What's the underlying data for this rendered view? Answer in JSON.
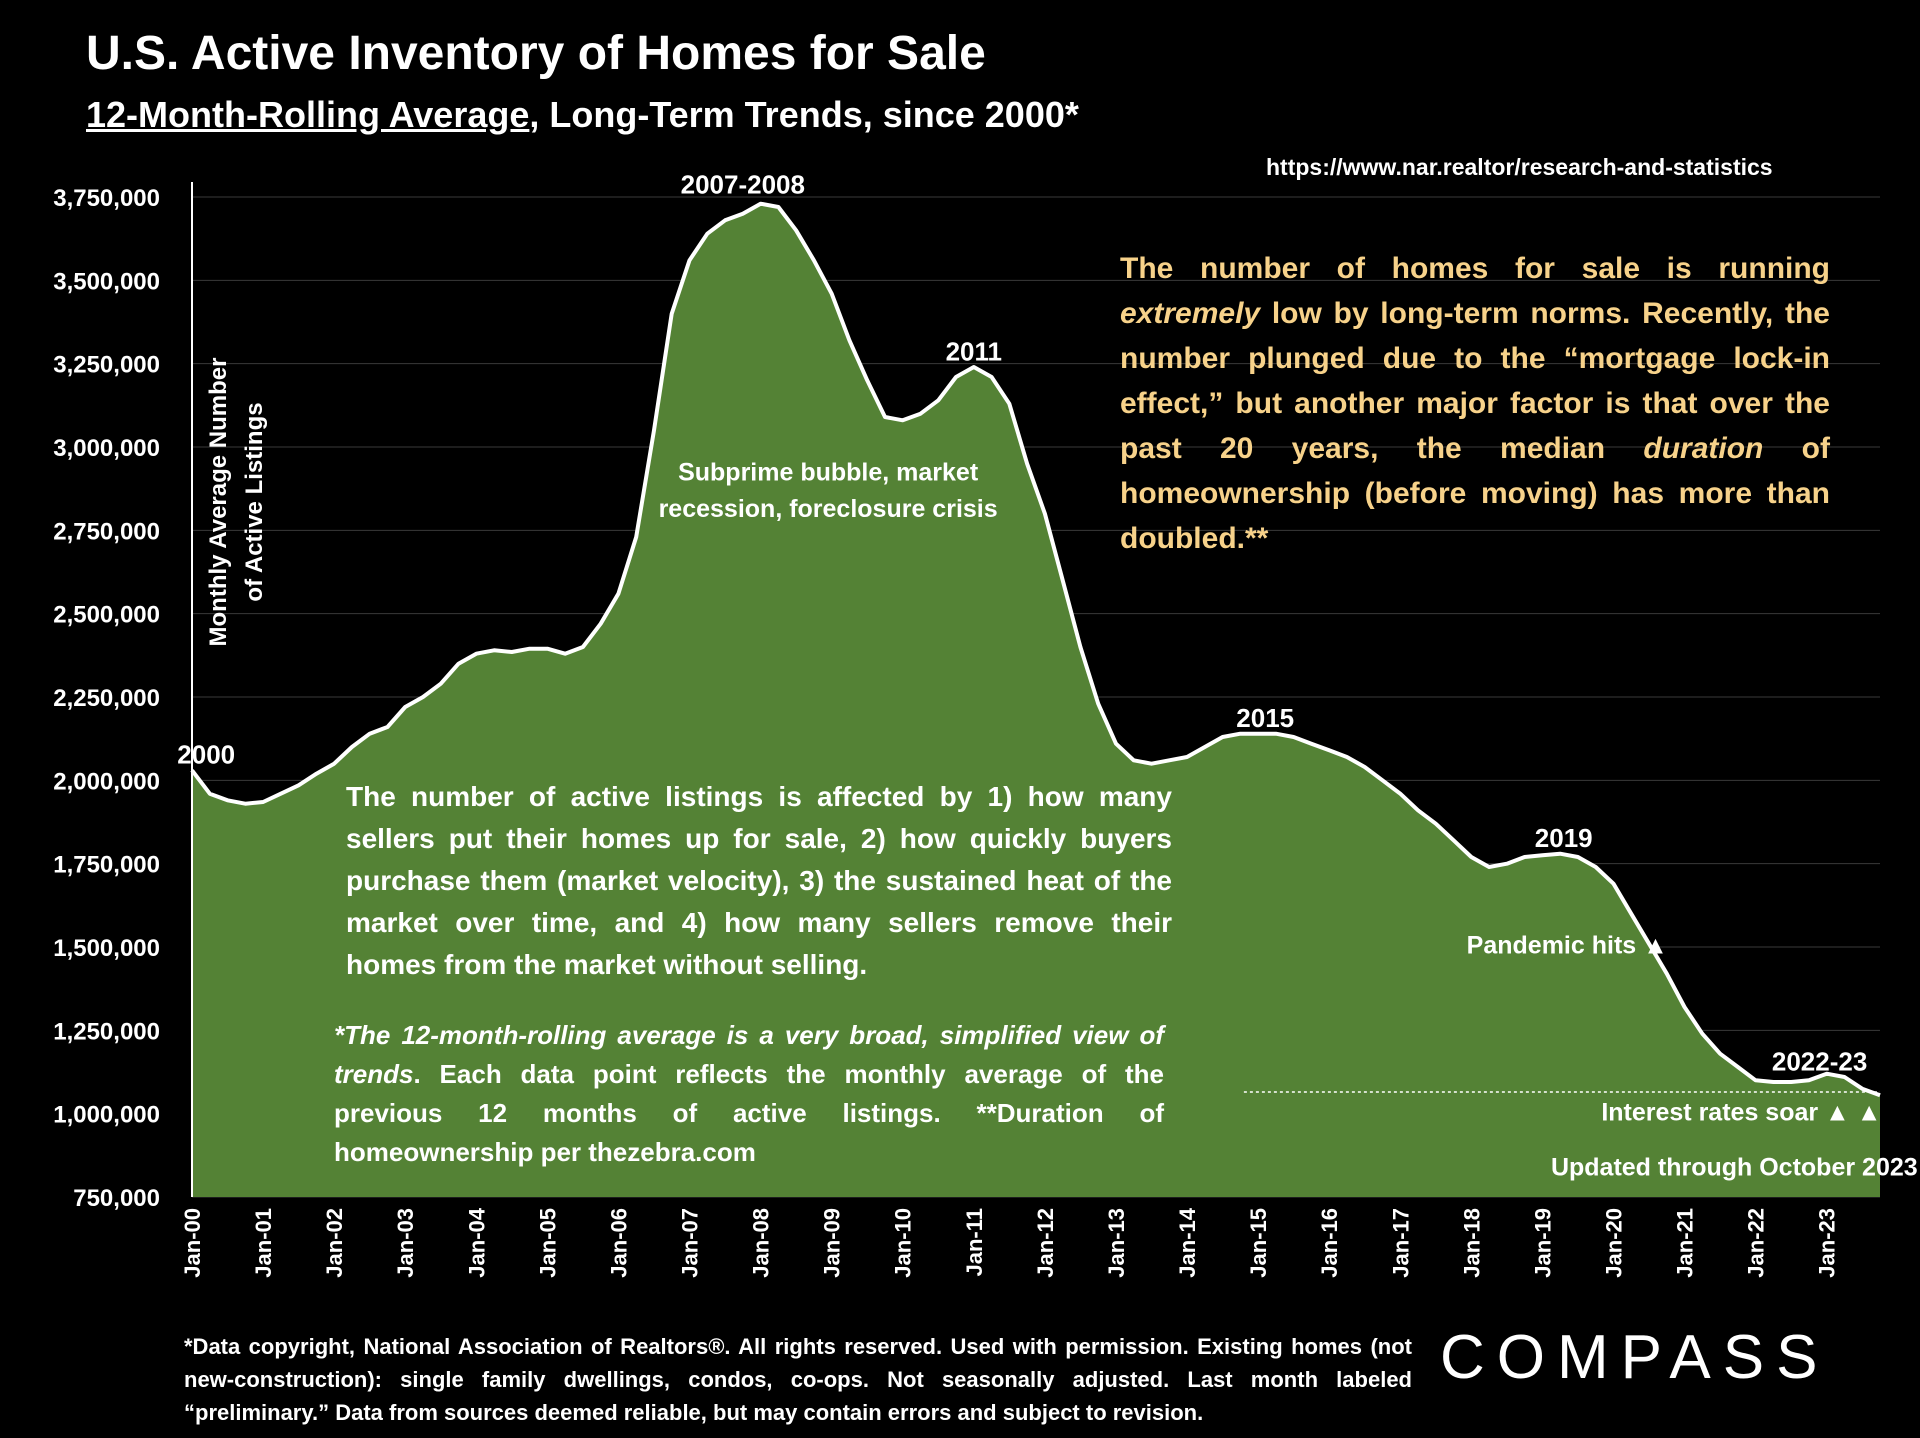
{
  "title": "U.S. Active Inventory of Homes for Sale",
  "subtitle_underlined": "12-Month-Rolling Average",
  "subtitle_rest": ", Long-Term Trends, since 2000*",
  "source_url": "https://www.nar.realtor/research-and-statistics",
  "colors": {
    "background": "#000000",
    "area_fill": "#548235",
    "line": "#ffffff",
    "highlight_text": "#f7d28a"
  },
  "notes": {
    "headline_p1": "The number of homes for sale is running ",
    "headline_em1": "extremely",
    "headline_p2": " low by long-term norms. Recently, the number plunged due to the “mortgage lock-in effect,” but another major factor is that over the past 20 years, the median ",
    "headline_em2": "duration",
    "headline_p3": " of homeownership (before moving) has more than doubled.**",
    "factors": "The number of active listings is affected by 1) how many sellers put their homes up for sale, 2) how quickly buyers purchase them (market velocity), 3) the sustained heat of the market over time, and 4) how many sellers remove their homes from the market without selling.",
    "rolling_em": "*The 12-month-rolling average is a very broad, simplified view of trends",
    "rolling_rest": ". Each data point reflects the monthly average of the previous 12 months of active listings. **Duration of homeownership per thezebra.com"
  },
  "footer": "*Data copyright, National Association of Realtors®. All rights reserved. Used with permission. Existing homes (not new-construction): single family dwellings, condos, co-ops. Not seasonally adjusted. Last month labeled “preliminary.” Data from sources deemed reliable, but may contain errors and subject to revision.",
  "logo": "COMPASS",
  "chart_data": {
    "type": "area",
    "title": "U.S. Active Inventory of Homes for Sale",
    "ylabel": "Monthly Average Number of Active  Listings",
    "ylabel_line1": "Monthly Average Number",
    "ylabel_line2": "of Active  Listings",
    "ylim": [
      750000,
      3750000
    ],
    "yticks": [
      750000,
      1000000,
      1250000,
      1500000,
      1750000,
      2000000,
      2250000,
      2500000,
      2750000,
      3000000,
      3250000,
      3500000,
      3750000
    ],
    "ytick_labels": [
      "750,000",
      "1,000,000",
      "1,250,000",
      "1,500,000",
      "1,750,000",
      "2,000,000",
      "2,250,000",
      "2,500,000",
      "2,750,000",
      "3,000,000",
      "3,250,000",
      "3,500,000",
      "3,750,000"
    ],
    "xlim": [
      2000.0,
      2023.75
    ],
    "xticks": [
      "Jan-00",
      "Jan-01",
      "Jan-02",
      "Jan-03",
      "Jan-04",
      "Jan-05",
      "Jan-06",
      "Jan-07",
      "Jan-08",
      "Jan-09",
      "Jan-10",
      "Jan-11",
      "Jan-12",
      "Jan-13",
      "Jan-14",
      "Jan-15",
      "Jan-16",
      "Jan-17",
      "Jan-18",
      "Jan-19",
      "Jan-20",
      "Jan-21",
      "Jan-22",
      "Jan-23"
    ],
    "grid": true,
    "series": [
      {
        "name": "Active listings (12-month rolling average)",
        "points": [
          [
            2000.0,
            2030000
          ],
          [
            2000.25,
            1960000
          ],
          [
            2000.5,
            1940000
          ],
          [
            2000.75,
            1930000
          ],
          [
            2001.0,
            1935000
          ],
          [
            2001.25,
            1960000
          ],
          [
            2001.5,
            1985000
          ],
          [
            2001.75,
            2020000
          ],
          [
            2002.0,
            2050000
          ],
          [
            2002.25,
            2100000
          ],
          [
            2002.5,
            2140000
          ],
          [
            2002.75,
            2160000
          ],
          [
            2003.0,
            2220000
          ],
          [
            2003.25,
            2250000
          ],
          [
            2003.5,
            2290000
          ],
          [
            2003.75,
            2350000
          ],
          [
            2004.0,
            2380000
          ],
          [
            2004.25,
            2390000
          ],
          [
            2004.5,
            2385000
          ],
          [
            2004.75,
            2395000
          ],
          [
            2005.0,
            2395000
          ],
          [
            2005.25,
            2380000
          ],
          [
            2005.5,
            2400000
          ],
          [
            2005.75,
            2470000
          ],
          [
            2006.0,
            2560000
          ],
          [
            2006.25,
            2730000
          ],
          [
            2006.5,
            3050000
          ],
          [
            2006.75,
            3400000
          ],
          [
            2007.0,
            3560000
          ],
          [
            2007.25,
            3640000
          ],
          [
            2007.5,
            3680000
          ],
          [
            2007.75,
            3700000
          ],
          [
            2008.0,
            3730000
          ],
          [
            2008.25,
            3720000
          ],
          [
            2008.5,
            3650000
          ],
          [
            2008.75,
            3560000
          ],
          [
            2009.0,
            3460000
          ],
          [
            2009.25,
            3320000
          ],
          [
            2009.5,
            3200000
          ],
          [
            2009.75,
            3090000
          ],
          [
            2010.0,
            3080000
          ],
          [
            2010.25,
            3100000
          ],
          [
            2010.5,
            3140000
          ],
          [
            2010.75,
            3210000
          ],
          [
            2011.0,
            3240000
          ],
          [
            2011.25,
            3210000
          ],
          [
            2011.5,
            3130000
          ],
          [
            2011.75,
            2950000
          ],
          [
            2012.0,
            2800000
          ],
          [
            2012.25,
            2600000
          ],
          [
            2012.5,
            2400000
          ],
          [
            2012.75,
            2230000
          ],
          [
            2013.0,
            2110000
          ],
          [
            2013.25,
            2060000
          ],
          [
            2013.5,
            2050000
          ],
          [
            2013.75,
            2060000
          ],
          [
            2014.0,
            2070000
          ],
          [
            2014.25,
            2100000
          ],
          [
            2014.5,
            2130000
          ],
          [
            2014.75,
            2140000
          ],
          [
            2015.0,
            2140000
          ],
          [
            2015.25,
            2140000
          ],
          [
            2015.5,
            2130000
          ],
          [
            2015.75,
            2110000
          ],
          [
            2016.0,
            2090000
          ],
          [
            2016.25,
            2070000
          ],
          [
            2016.5,
            2040000
          ],
          [
            2016.75,
            2000000
          ],
          [
            2017.0,
            1960000
          ],
          [
            2017.25,
            1910000
          ],
          [
            2017.5,
            1870000
          ],
          [
            2017.75,
            1820000
          ],
          [
            2018.0,
            1770000
          ],
          [
            2018.25,
            1740000
          ],
          [
            2018.5,
            1750000
          ],
          [
            2018.75,
            1770000
          ],
          [
            2019.0,
            1775000
          ],
          [
            2019.25,
            1780000
          ],
          [
            2019.5,
            1770000
          ],
          [
            2019.75,
            1740000
          ],
          [
            2020.0,
            1690000
          ],
          [
            2020.25,
            1600000
          ],
          [
            2020.5,
            1510000
          ],
          [
            2020.75,
            1420000
          ],
          [
            2021.0,
            1320000
          ],
          [
            2021.25,
            1240000
          ],
          [
            2021.5,
            1180000
          ],
          [
            2021.75,
            1140000
          ],
          [
            2022.0,
            1100000
          ],
          [
            2022.25,
            1095000
          ],
          [
            2022.5,
            1095000
          ],
          [
            2022.75,
            1100000
          ],
          [
            2023.0,
            1120000
          ],
          [
            2023.25,
            1110000
          ],
          [
            2023.5,
            1075000
          ],
          [
            2023.75,
            1055000
          ]
        ]
      }
    ],
    "annotations": [
      {
        "label": "2000",
        "x": 2000.2,
        "y": 2050000
      },
      {
        "label": "2007-2008",
        "x": 2007.75,
        "y": 3760000
      },
      {
        "label": "2011",
        "x": 2011.0,
        "y": 3260000
      },
      {
        "label": "2015",
        "x": 2015.1,
        "y": 2160000
      },
      {
        "label": "2019",
        "x": 2019.3,
        "y": 1800000
      },
      {
        "label": "2022-23",
        "x": 2022.9,
        "y": 1130000
      },
      {
        "label": "Subprime bubble, market",
        "x": 2008.95,
        "y": 2900000
      },
      {
        "label": "recession, foreclosure crisis",
        "x": 2008.95,
        "y": 2790000
      },
      {
        "label": "Pandemic  hits ▲",
        "x": 2019.35,
        "y": 1480000
      },
      {
        "label": "Interest rates soar ▲ ▲",
        "x": 2021.8,
        "y": 980000
      },
      {
        "label": "Updated through October 2023",
        "x": 2021.7,
        "y": 815000
      }
    ],
    "reference_line": {
      "style": "dotted",
      "y": 1065000,
      "x_start": 2014.8,
      "x_end": 2023.75
    }
  }
}
